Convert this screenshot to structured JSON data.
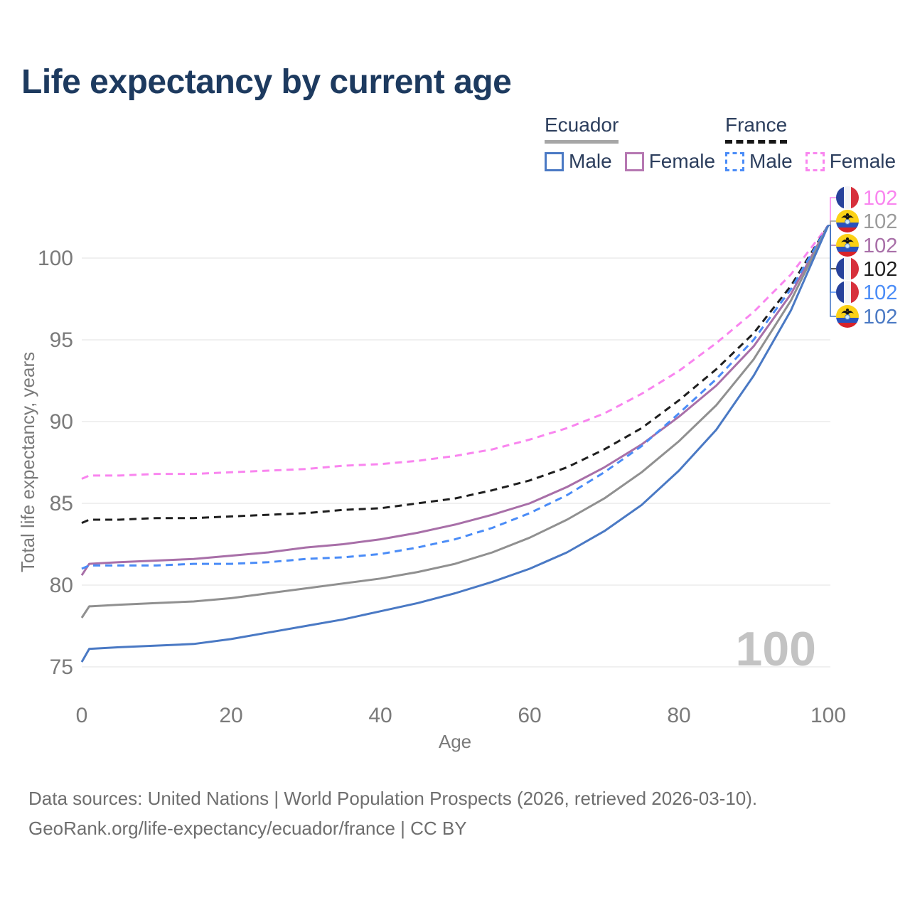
{
  "title": "Life expectancy by current age",
  "legend": {
    "groups": [
      {
        "title": "Ecuador",
        "line_style": "solid",
        "underline_color": "#a6a6a6",
        "items": [
          {
            "label": "Male",
            "color": "#4a79c4",
            "dashed": false
          },
          {
            "label": "Female",
            "color": "#b678b2",
            "dashed": false
          }
        ]
      },
      {
        "title": "France",
        "line_style": "dashed",
        "underline_color": "#161616",
        "items": [
          {
            "label": "Male",
            "color": "#4a8cf7",
            "dashed": true
          },
          {
            "label": "Female",
            "color": "#f985ef",
            "dashed": true
          }
        ]
      }
    ]
  },
  "chart_data": {
    "type": "line",
    "title": "Life expectancy by current age",
    "xlabel": "Age",
    "ylabel": "Total life expectancy, years",
    "xlim": [
      0,
      100
    ],
    "ylim": [
      75,
      102.5
    ],
    "xticks": [
      0,
      20,
      40,
      60,
      80,
      100
    ],
    "yticks": [
      75,
      80,
      85,
      90,
      95,
      100
    ],
    "grid": "horizontal-only",
    "legend_position": "top-right",
    "age_watermark": "100",
    "x": [
      0,
      1,
      5,
      10,
      15,
      20,
      25,
      30,
      35,
      40,
      45,
      50,
      55,
      60,
      65,
      70,
      75,
      80,
      85,
      90,
      95,
      100
    ],
    "series": [
      {
        "name": "France Female",
        "country": "France",
        "icon": "france-flag-icon",
        "color": "#f985ef",
        "dashed": true,
        "values": [
          86.5,
          86.7,
          86.7,
          86.8,
          86.8,
          86.9,
          87.0,
          87.1,
          87.3,
          87.4,
          87.6,
          87.9,
          88.3,
          88.9,
          89.6,
          90.5,
          91.7,
          93.1,
          94.8,
          96.7,
          99.0,
          102
        ]
      },
      {
        "name": "France",
        "country": "France",
        "icon": "france-flag-icon",
        "color": "#1f1f1f",
        "dashed": true,
        "values": [
          83.8,
          84.0,
          84.0,
          84.1,
          84.1,
          84.2,
          84.3,
          84.4,
          84.6,
          84.7,
          85.0,
          85.3,
          85.8,
          86.4,
          87.2,
          88.3,
          89.6,
          91.3,
          93.2,
          95.4,
          98.3,
          102
        ]
      },
      {
        "name": "Ecuador Female",
        "country": "Ecuador",
        "icon": "ecuador-flag-icon",
        "color": "#a86fa8",
        "dashed": false,
        "values": [
          80.6,
          81.3,
          81.4,
          81.5,
          81.6,
          81.8,
          82.0,
          82.3,
          82.5,
          82.8,
          83.2,
          83.7,
          84.3,
          85.0,
          86.0,
          87.2,
          88.6,
          90.3,
          92.2,
          94.6,
          97.8,
          102
        ]
      },
      {
        "name": "France Male",
        "country": "France",
        "icon": "france-flag-icon",
        "color": "#4a8cf7",
        "dashed": true,
        "values": [
          81.0,
          81.2,
          81.2,
          81.2,
          81.3,
          81.3,
          81.4,
          81.6,
          81.7,
          81.9,
          82.3,
          82.8,
          83.5,
          84.4,
          85.5,
          86.9,
          88.5,
          90.5,
          92.6,
          95.0,
          98.1,
          102
        ]
      },
      {
        "name": "Ecuador",
        "country": "Ecuador",
        "icon": "ecuador-flag-icon",
        "color": "#909090",
        "dashed": false,
        "values": [
          78.0,
          78.7,
          78.8,
          78.9,
          79.0,
          79.2,
          79.5,
          79.8,
          80.1,
          80.4,
          80.8,
          81.3,
          82.0,
          82.9,
          84.0,
          85.3,
          86.9,
          88.8,
          91.0,
          93.8,
          97.4,
          102
        ]
      },
      {
        "name": "Ecuador Male",
        "country": "Ecuador",
        "icon": "ecuador-flag-icon",
        "color": "#4a79c4",
        "dashed": false,
        "values": [
          75.3,
          76.1,
          76.2,
          76.3,
          76.4,
          76.7,
          77.1,
          77.5,
          77.9,
          78.4,
          78.9,
          79.5,
          80.2,
          81.0,
          82.0,
          83.3,
          84.9,
          87.0,
          89.5,
          92.8,
          96.8,
          102
        ]
      }
    ],
    "end_labels": [
      {
        "series": "France Female",
        "icon": "france-flag-icon",
        "value": "102",
        "color": "#f985ef"
      },
      {
        "series": "Ecuador",
        "icon": "ecuador-flag-icon",
        "value": "102",
        "color": "#9b9b9b"
      },
      {
        "series": "Ecuador Female",
        "icon": "ecuador-flag-icon",
        "value": "102",
        "color": "#a86fa8"
      },
      {
        "series": "France",
        "icon": "france-flag-icon",
        "value": "102",
        "color": "#1f1f1f"
      },
      {
        "series": "France Male",
        "icon": "france-flag-icon",
        "value": "102",
        "color": "#4a8cf7"
      },
      {
        "series": "Ecuador Male",
        "icon": "ecuador-flag-icon",
        "value": "102",
        "color": "#4a79c4"
      }
    ]
  },
  "footer": {
    "line1": "Data sources: United Nations | World Population Prospects (2026, retrieved 2026-03-10).",
    "line2": "GeoRank.org/life-expectancy/ecuador/france | CC BY"
  }
}
